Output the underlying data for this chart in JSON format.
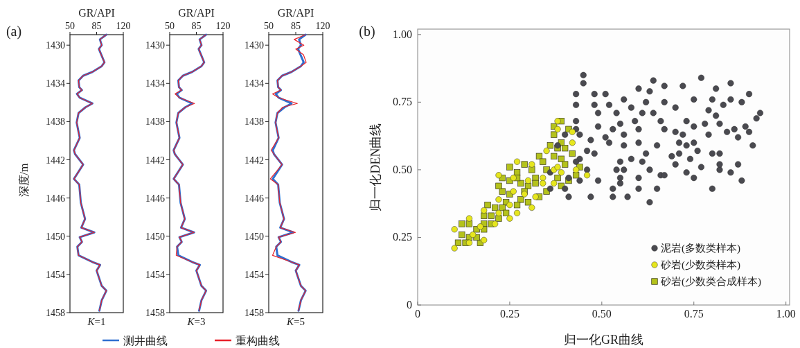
{
  "chart_data": [
    {
      "type": "line",
      "title": "GR/API",
      "xlabel": "*K*=1",
      "ylabel": "深度/m",
      "annotations": [
        "(a)"
      ],
      "legend": "bottom",
      "xlim": [
        50,
        120
      ],
      "xticks": [
        50,
        85,
        120
      ],
      "ylim": [
        1458,
        1428.9
      ],
      "yticks": [
        1430,
        1434,
        1438,
        1442,
        1446,
        1450,
        1454,
        1458
      ],
      "line_style": "solid",
      "series": [
        {
          "name": "测井曲线",
          "color": "#2f6fd0",
          "x": [
            97.8,
            89.3,
            91.7,
            88.0,
            91.1,
            95.3,
            91.7,
            79.5,
            67.3,
            61.3,
            62.2,
            65.8,
            59.1,
            62.8,
            79.5,
            70.4,
            61.3,
            58.8,
            62.8,
            55.2,
            56.7,
            67.3,
            55.2,
            62.2,
            64.3,
            69.8,
            64.9,
            82.0,
            62.8,
            65.8,
            59.7,
            61.3,
            79.5,
            89.6,
            85.0,
            91.7,
            97.8,
            91.7,
            88.6
          ],
          "values": [
            1428.9,
            1429.4,
            1430.0,
            1430.4,
            1431.0,
            1431.8,
            1432.2,
            1432.8,
            1433.2,
            1433.7,
            1434.4,
            1434.7,
            1435.1,
            1435.5,
            1436.1,
            1436.5,
            1437.1,
            1438.1,
            1439.7,
            1441.0,
            1441.4,
            1442.5,
            1444.0,
            1444.6,
            1446.5,
            1448.2,
            1449.1,
            1449.6,
            1450.1,
            1450.6,
            1451.1,
            1452.0,
            1452.7,
            1453.0,
            1453.6,
            1455.2,
            1455.7,
            1456.7,
            1457.8
          ]
        },
        {
          "name": "重构曲线",
          "color": "#e8202a",
          "x": [
            97.8,
            89.3,
            91.7,
            88.0,
            91.1,
            95.3,
            91.7,
            79.5,
            67.3,
            61.3,
            62.2,
            65.8,
            59.1,
            62.8,
            79.5,
            70.4,
            61.3,
            58.8,
            62.8,
            55.2,
            56.7,
            67.3,
            55.2,
            62.2,
            64.3,
            69.8,
            64.9,
            82.0,
            62.8,
            65.8,
            59.7,
            61.3,
            79.5,
            89.6,
            85.0,
            91.7,
            97.8,
            91.7,
            88.6
          ],
          "values": [
            1428.9,
            1429.4,
            1430.0,
            1430.4,
            1431.0,
            1431.8,
            1432.2,
            1432.8,
            1433.2,
            1433.7,
            1434.4,
            1434.7,
            1435.1,
            1435.5,
            1436.1,
            1436.5,
            1437.1,
            1438.1,
            1439.7,
            1441.0,
            1441.4,
            1442.5,
            1444.0,
            1444.6,
            1446.5,
            1448.2,
            1449.1,
            1449.6,
            1450.1,
            1450.6,
            1451.1,
            1452.0,
            1452.7,
            1453.0,
            1453.6,
            1455.2,
            1455.7,
            1456.7,
            1457.8
          ]
        }
      ]
    },
    {
      "type": "line",
      "title": "GR/API",
      "xlabel": "*K*=3",
      "xlim": [
        50,
        120
      ],
      "xticks": [
        50,
        85,
        120
      ],
      "ylim": [
        1458,
        1428.9
      ],
      "yticks": [
        1430,
        1434,
        1438,
        1442,
        1446,
        1450,
        1454,
        1458
      ],
      "line_style": "solid",
      "series": [
        {
          "color": "#2f6fd0",
          "x": [
            97.8,
            89.3,
            91.7,
            88.0,
            91.1,
            95.3,
            91.7,
            79.5,
            67.3,
            61.3,
            62.2,
            65.8,
            59.1,
            62.8,
            79.5,
            70.4,
            61.3,
            58.8,
            62.8,
            55.2,
            56.7,
            67.3,
            55.2,
            62.2,
            64.3,
            69.8,
            64.9,
            82.0,
            62.8,
            65.8,
            59.7,
            61.3,
            79.5,
            89.6,
            85.0,
            91.7,
            97.8,
            91.7,
            88.6
          ],
          "values": [
            1428.9,
            1429.4,
            1430.0,
            1430.4,
            1431.0,
            1431.8,
            1432.2,
            1432.8,
            1433.2,
            1433.7,
            1434.4,
            1434.7,
            1435.1,
            1435.5,
            1436.1,
            1436.5,
            1437.1,
            1438.1,
            1439.7,
            1441.0,
            1441.4,
            1442.5,
            1444.0,
            1444.6,
            1446.5,
            1448.2,
            1449.1,
            1449.6,
            1450.1,
            1450.6,
            1451.1,
            1452.0,
            1452.7,
            1453.0,
            1453.6,
            1455.2,
            1455.7,
            1456.7,
            1457.8
          ]
        },
        {
          "color": "#e8202a",
          "x": [
            97.8,
            89.3,
            91.7,
            88.0,
            91.1,
            95.3,
            91.7,
            79.5,
            67.3,
            61.3,
            62.2,
            65.8,
            57.0,
            62.8,
            82.5,
            70.4,
            61.3,
            58.8,
            62.8,
            55.2,
            56.7,
            67.3,
            55.2,
            62.2,
            64.3,
            69.8,
            64.9,
            82.0,
            62.8,
            65.8,
            59.7,
            58.5,
            79.5,
            89.6,
            85.0,
            91.7,
            97.8,
            91.7,
            88.6
          ],
          "values": [
            1428.9,
            1429.4,
            1430.0,
            1430.4,
            1431.0,
            1431.8,
            1432.2,
            1432.8,
            1433.2,
            1433.7,
            1434.4,
            1434.7,
            1435.1,
            1435.5,
            1436.1,
            1436.5,
            1437.1,
            1438.1,
            1439.7,
            1441.0,
            1441.4,
            1442.5,
            1444.0,
            1444.6,
            1446.5,
            1448.2,
            1449.1,
            1449.6,
            1450.1,
            1450.6,
            1451.1,
            1452.0,
            1452.7,
            1453.0,
            1453.6,
            1455.2,
            1455.7,
            1456.7,
            1457.8
          ]
        }
      ]
    },
    {
      "type": "line",
      "title": "GR/API",
      "xlabel": "*K*=5",
      "xlim": [
        50,
        120
      ],
      "xticks": [
        50,
        85,
        120
      ],
      "ylim": [
        1458,
        1428.9
      ],
      "yticks": [
        1430,
        1434,
        1438,
        1442,
        1446,
        1450,
        1454,
        1458
      ],
      "line_style": "solid",
      "series": [
        {
          "color": "#2f6fd0",
          "x": [
            97.8,
            89.3,
            91.7,
            88.0,
            91.1,
            95.3,
            91.7,
            79.5,
            67.3,
            61.3,
            62.2,
            65.8,
            59.1,
            62.8,
            79.5,
            70.4,
            61.3,
            58.8,
            62.8,
            55.2,
            56.7,
            67.3,
            55.2,
            62.2,
            64.3,
            69.8,
            64.9,
            82.0,
            62.8,
            65.8,
            59.7,
            61.3,
            79.5,
            89.6,
            85.0,
            91.7,
            97.8,
            91.7,
            88.6
          ],
          "values": [
            1428.9,
            1429.4,
            1430.0,
            1430.4,
            1431.0,
            1431.8,
            1432.2,
            1432.8,
            1433.2,
            1433.7,
            1434.4,
            1434.7,
            1435.1,
            1435.5,
            1436.1,
            1436.5,
            1437.1,
            1438.1,
            1439.7,
            1441.0,
            1441.4,
            1442.5,
            1444.0,
            1444.6,
            1446.5,
            1448.2,
            1449.1,
            1449.6,
            1450.1,
            1450.6,
            1451.1,
            1452.0,
            1452.7,
            1453.0,
            1453.6,
            1455.2,
            1455.7,
            1456.7,
            1457.8
          ]
        },
        {
          "color": "#e8202a",
          "x": [
            97.8,
            83.0,
            95.5,
            85.0,
            95.0,
            98.5,
            91.7,
            79.5,
            67.3,
            61.3,
            62.2,
            65.8,
            55.0,
            62.8,
            87.0,
            68.0,
            61.3,
            58.8,
            62.8,
            53.0,
            56.7,
            67.3,
            52.0,
            62.2,
            64.3,
            69.8,
            64.9,
            84.5,
            62.8,
            65.8,
            59.7,
            55.0,
            79.5,
            89.6,
            85.0,
            91.7,
            97.8,
            91.7,
            88.6
          ],
          "values": [
            1428.9,
            1429.4,
            1430.0,
            1430.4,
            1431.0,
            1431.8,
            1432.2,
            1432.8,
            1433.2,
            1433.7,
            1434.4,
            1434.7,
            1435.1,
            1435.5,
            1436.1,
            1436.5,
            1437.1,
            1438.1,
            1439.7,
            1441.0,
            1441.4,
            1442.5,
            1444.0,
            1444.6,
            1446.5,
            1448.2,
            1449.1,
            1449.6,
            1450.1,
            1450.6,
            1451.1,
            1452.0,
            1452.7,
            1453.0,
            1453.6,
            1455.2,
            1455.7,
            1456.7,
            1457.8
          ]
        }
      ]
    },
    {
      "type": "scatter",
      "xlabel": "归一化GR曲线",
      "ylabel": "归一化DEN曲线",
      "annotations": [
        "(b)"
      ],
      "legend": "bottom right",
      "xlim": [
        0,
        1.01
      ],
      "ylim": [
        0,
        1.02
      ],
      "xticks": [
        0,
        0.25,
        {
          "value": 0.5,
          "label": "0.50"
        },
        0.75,
        {
          "value": 1,
          "label": "1.00"
        }
      ],
      "yticks": [
        0,
        0.25,
        {
          "value": 0.5,
          "label": "0.50"
        },
        0.75,
        {
          "value": 1,
          "label": "1.00"
        }
      ],
      "series": [
        {
          "name": "泥岩(多数类样本)",
          "color": "#4a4a50",
          "marker": "circle",
          "x": [
            0.45,
            0.45,
            0.43,
            0.43,
            0.43,
            0.43,
            0.44,
            0.48,
            0.51,
            0.52,
            0.48,
            0.49,
            0.54,
            0.56,
            0.58,
            0.6,
            0.64,
            0.67,
            0.72,
            0.77,
            0.81,
            0.85,
            0.9,
            0.85,
            0.88,
            0.93,
            0.92,
            0.89,
            0.9,
            0.91,
            0.87,
            0.86,
            0.84,
            0.83,
            0.8,
            0.75,
            0.79,
            0.7,
            0.67,
            0.63,
            0.62,
            0.64,
            0.61,
            0.59,
            0.56,
            0.55,
            0.53,
            0.51,
            0.49,
            0.47,
            0.48,
            0.46,
            0.44,
            0.46,
            0.44,
            0.47,
            0.41,
            0.4,
            0.49,
            0.53,
            0.53,
            0.55,
            0.57,
            0.6,
            0.55,
            0.54,
            0.56,
            0.55,
            0.58,
            0.61,
            0.6,
            0.63,
            0.66,
            0.67,
            0.65,
            0.63,
            0.69,
            0.71,
            0.7,
            0.73,
            0.75,
            0.74,
            0.77,
            0.8,
            0.82,
            0.85,
            0.82,
            0.82,
            0.8,
            0.76,
            0.73,
            0.71,
            0.72,
            0.7,
            0.67,
            0.65,
            0.62,
            0.6,
            0.56,
            0.52,
            0.75,
            0.79,
            0.78,
            0.82,
            0.81,
            0.75,
            0.73,
            0.87,
            0.88,
            0.66,
            0.6,
            0.38,
            0.4,
            0.36,
            0.36,
            0.41,
            0.43
          ],
          "values": [
            0.85,
            0.82,
            0.78,
            0.74,
            0.68,
            0.65,
            0.63,
            0.78,
            0.78,
            0.74,
            0.74,
            0.71,
            0.71,
            0.76,
            0.73,
            0.8,
            0.83,
            0.81,
            0.81,
            0.84,
            0.8,
            0.82,
            0.78,
            0.76,
            0.75,
            0.71,
            0.69,
            0.66,
            0.64,
            0.59,
            0.62,
            0.65,
            0.64,
            0.74,
            0.76,
            0.76,
            0.72,
            0.73,
            0.75,
            0.79,
            0.75,
            0.71,
            0.71,
            0.68,
            0.63,
            0.67,
            0.65,
            0.62,
            0.66,
            0.61,
            0.56,
            0.57,
            0.54,
            0.5,
            0.46,
            0.4,
            0.4,
            0.43,
            0.46,
            0.43,
            0.4,
            0.45,
            0.4,
            0.43,
            0.47,
            0.5,
            0.5,
            0.53,
            0.54,
            0.53,
            0.47,
            0.5,
            0.48,
            0.48,
            0.43,
            0.38,
            0.55,
            0.56,
            0.52,
            0.49,
            0.47,
            0.54,
            0.51,
            0.43,
            0.5,
            0.49,
            0.52,
            0.56,
            0.56,
            0.57,
            0.59,
            0.6,
            0.63,
            0.64,
            0.65,
            0.59,
            0.56,
            0.6,
            0.59,
            0.6,
            0.6,
            0.63,
            0.67,
            0.67,
            0.7,
            0.66,
            0.68,
            0.52,
            0.46,
            0.68,
            0.65,
            0.59,
            0.63,
            0.49,
            0.43,
            0.47,
            0.53
          ]
        },
        {
          "name": "砂岩(少数类样本)",
          "color": "#e6e61e",
          "marker": "circle",
          "x": [
            0.38,
            0.38,
            0.42,
            0.35,
            0.27,
            0.22,
            0.26,
            0.3,
            0.31,
            0.34,
            0.37,
            0.39,
            0.46,
            0.43,
            0.26,
            0.29,
            0.32,
            0.22,
            0.18,
            0.25,
            0.31,
            0.27,
            0.22,
            0.25,
            0.21,
            0.14,
            0.17,
            0.1,
            0.15,
            0.18,
            0.14,
            0.1,
            0.37,
            0.38,
            0.42,
            0.34
          ],
          "values": [
            0.68,
            0.65,
            0.64,
            0.57,
            0.53,
            0.48,
            0.47,
            0.46,
            0.52,
            0.47,
            0.45,
            0.49,
            0.48,
            0.5,
            0.42,
            0.41,
            0.4,
            0.39,
            0.35,
            0.37,
            0.36,
            0.34,
            0.34,
            0.32,
            0.3,
            0.32,
            0.29,
            0.28,
            0.26,
            0.24,
            0.23,
            0.21,
            0.5,
            0.51,
            0.6,
            0.45
          ]
        },
        {
          "name": "砂岩(少数类合成样本)",
          "color": "#b4c21c",
          "marker": "square",
          "x": [
            0.37,
            0.39,
            0.41,
            0.37,
            0.39,
            0.36,
            0.4,
            0.33,
            0.34,
            0.37,
            0.39,
            0.29,
            0.25,
            0.27,
            0.31,
            0.23,
            0.25,
            0.28,
            0.32,
            0.4,
            0.44,
            0.43,
            0.41,
            0.39,
            0.35,
            0.33,
            0.3,
            0.29,
            0.23,
            0.25,
            0.28,
            0.3,
            0.27,
            0.24,
            0.19,
            0.21,
            0.23,
            0.18,
            0.2,
            0.24,
            0.2,
            0.18,
            0.22,
            0.12,
            0.14,
            0.16,
            0.18,
            0.12,
            0.14,
            0.11,
            0.13,
            0.17,
            0.16,
            0.35,
            0.32,
            0.38,
            0.42,
            0.38,
            0.27,
            0.22
          ],
          "values": [
            0.66,
            0.68,
            0.65,
            0.63,
            0.6,
            0.59,
            0.58,
            0.55,
            0.53,
            0.55,
            0.54,
            0.52,
            0.51,
            0.49,
            0.5,
            0.47,
            0.46,
            0.45,
            0.47,
            0.52,
            0.51,
            0.48,
            0.46,
            0.44,
            0.42,
            0.4,
            0.44,
            0.42,
            0.42,
            0.41,
            0.39,
            0.38,
            0.37,
            0.38,
            0.37,
            0.36,
            0.36,
            0.33,
            0.33,
            0.34,
            0.3,
            0.3,
            0.32,
            0.3,
            0.3,
            0.28,
            0.28,
            0.26,
            0.25,
            0.23,
            0.23,
            0.23,
            0.25,
            0.5,
            0.45,
            0.47,
            0.56,
            0.58,
            0.47,
            0.44
          ]
        }
      ]
    }
  ]
}
